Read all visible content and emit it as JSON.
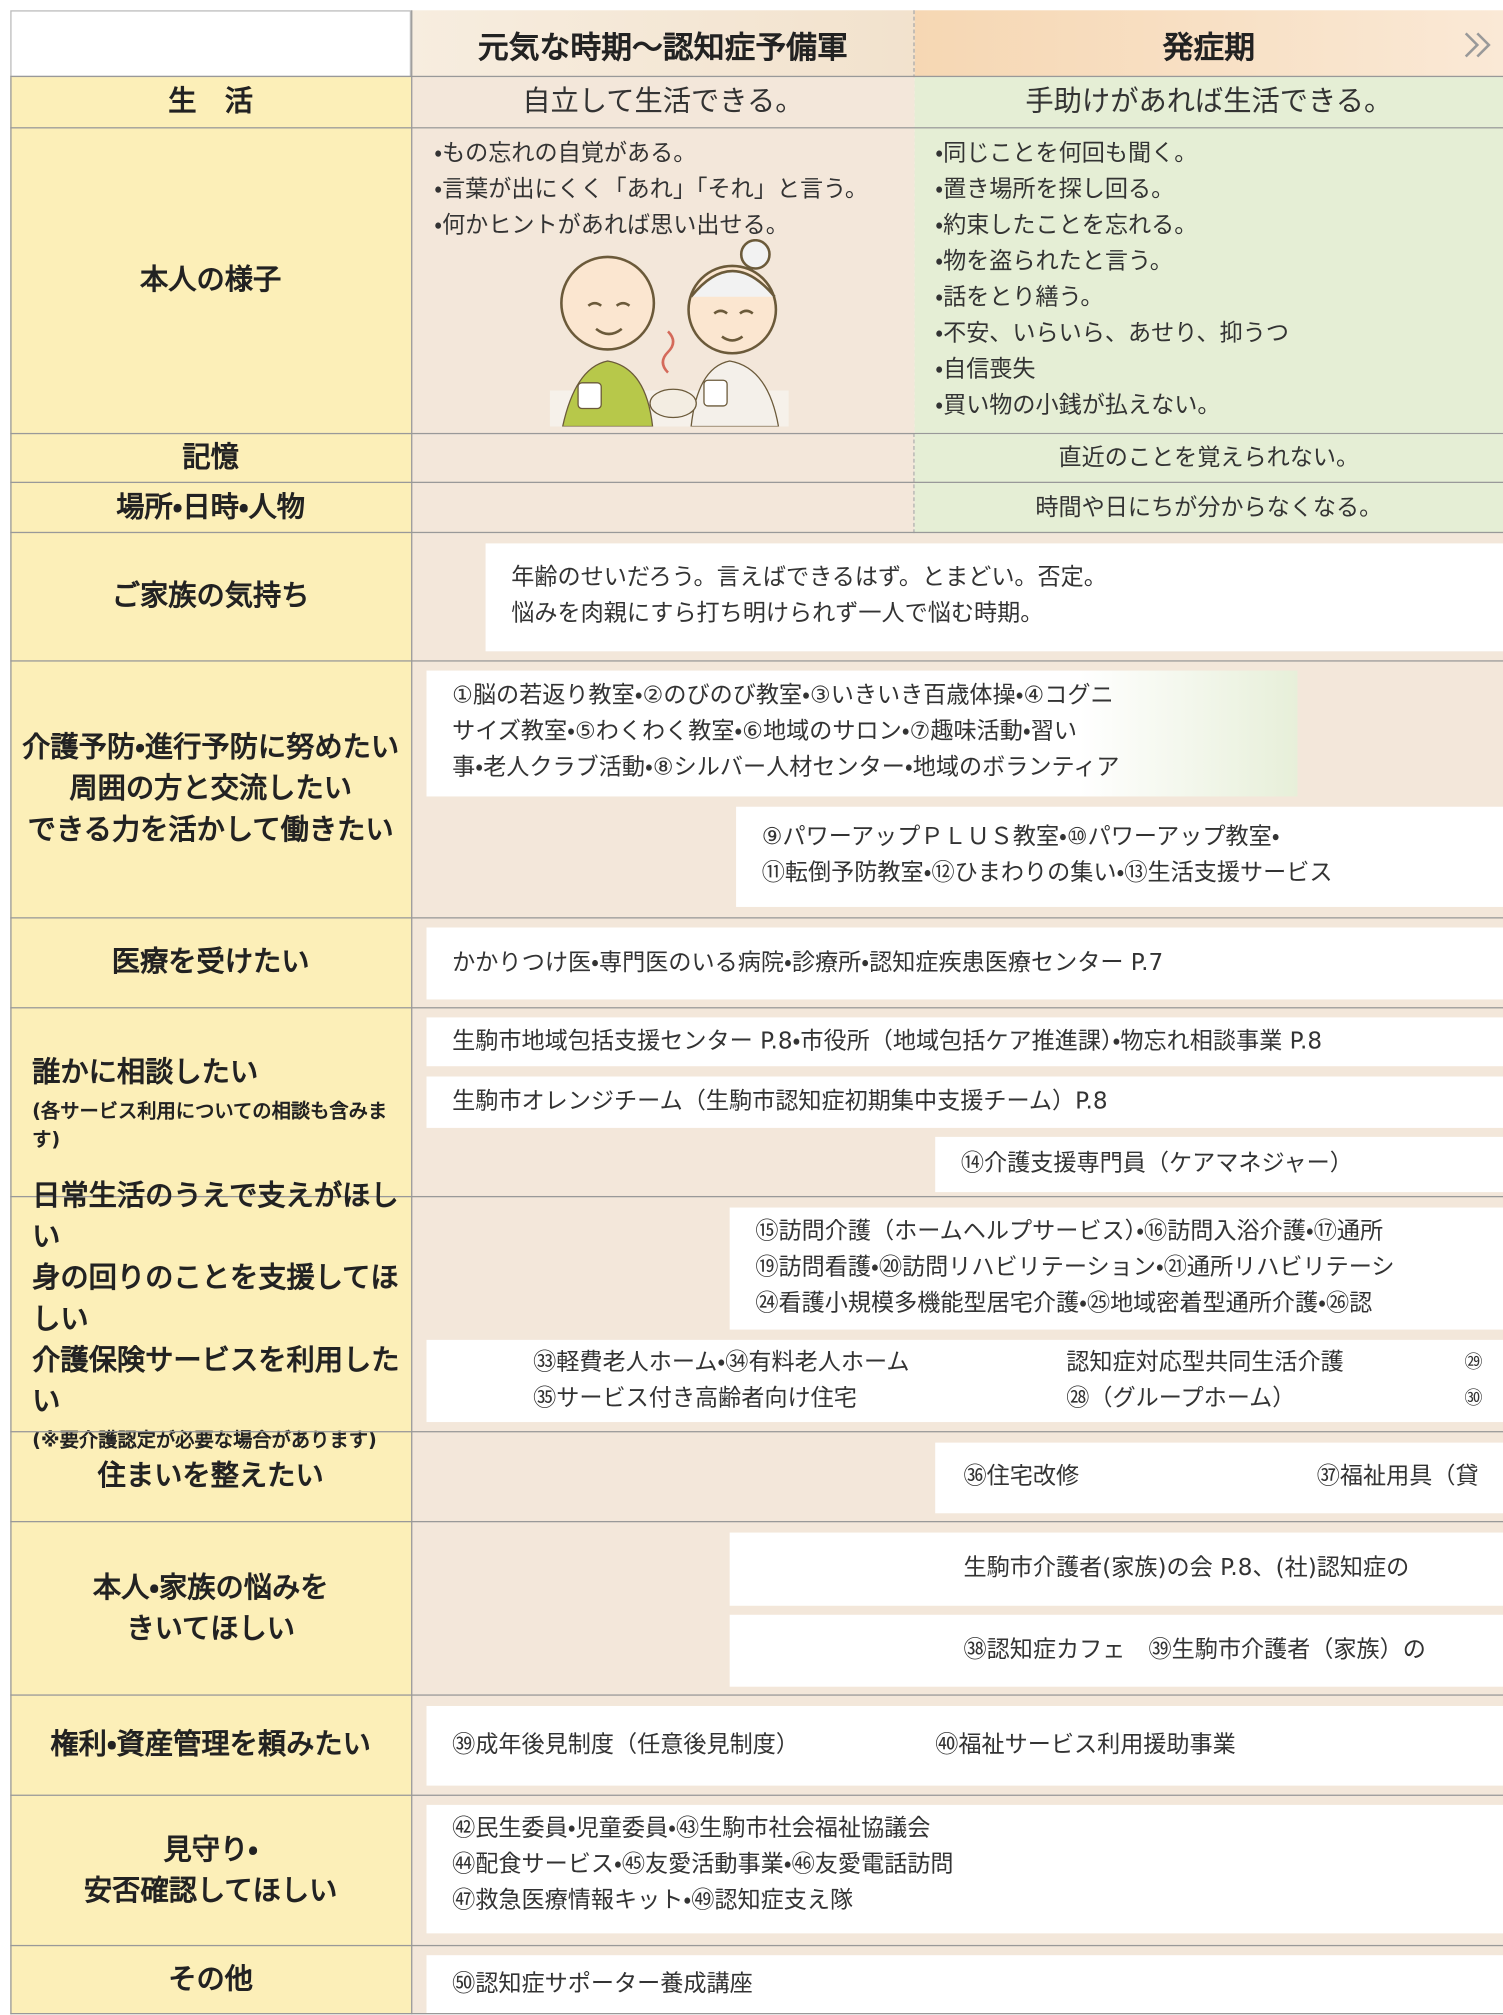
{
  "header": {
    "col1": "元気な時期〜認知症予備軍",
    "col2": "発症期"
  },
  "rows": [
    {
      "label": [
        "生　活"
      ],
      "boxes": [
        {
          "groups": [
            [
              "自立して生活できる。"
            ]
          ]
        },
        {
          "groups": [
            [
              "手助けがあれば生活できる。"
            ]
          ]
        }
      ]
    },
    {
      "label": [
        "本人の様子"
      ],
      "boxes": [
        {
          "groups": [
            [
              "・もの忘れの自覚がある。",
              "・言葉が出にくく「あれ」「それ」と言う。",
              "・何かヒントがあれば思い出せる。"
            ]
          ]
        },
        {
          "groups": [
            [
              "・同じことを何回も聞く。",
              "・置き場所を探し回る。",
              "・約束したことを忘れる。",
              "・物を盗られたと言う。",
              "・話をとり繕う。",
              "・不安、いらいら、あせり、抑うつ",
              "・自信喪失",
              "・買い物の小銭が払えない。"
            ]
          ]
        }
      ]
    },
    {
      "label": [
        "記憶"
      ],
      "boxes": [
        {
          "groups": [
            [
              "直近のことを覚えられない。"
            ]
          ]
        }
      ]
    },
    {
      "label": [
        "場所・日時・人物"
      ],
      "boxes": [
        {
          "groups": [
            [
              "時間や日にちが分からなくなる。"
            ]
          ]
        }
      ]
    },
    {
      "label": [
        "ご家族の気持ち"
      ],
      "boxes": [
        {
          "groups": [
            [
              "年齢のせいだろう。言えばできるはず。とまどい。否定。",
              "悩みを肉親にすら打ち明けられず一人で悩む時期。"
            ]
          ]
        }
      ]
    },
    {
      "label": [
        "介護予防・進行予防に努めたい",
        "周囲の方と交流したい",
        "できる力を活かして働きたい"
      ],
      "boxes": [
        {
          "groups": [
            [
              "①脳の若返り教室・②のびのび教室・③いきいき百歳体操・④コグニ",
              "サイズ教室・⑤わくわく教室・⑥地域のサロン・⑦趣味活動・習い",
              "事・老人クラブ活動・⑧シルバー人材センター・地域のボランティア"
            ]
          ]
        },
        {
          "groups": [
            [
              "⑨パワーアップＰＬＵＳ教室・⑩パワーアップ教室・",
              "⑪転倒予防教室・⑫ひまわりの集い・⑬生活支援サービス"
            ]
          ]
        }
      ]
    },
    {
      "label": [
        "医療を受けたい"
      ],
      "boxes": [
        {
          "groups": [
            [
              "かかりつけ医・専門医のいる病院・診療所・認知症疾患医療センター P.7"
            ]
          ]
        }
      ]
    },
    {
      "label": [
        "誰かに相談したい"
      ],
      "note": "(各サービス利用についての相談も含みます)",
      "boxes": [
        {
          "groups": [
            [
              "生駒市地域包括支援センター P.8・市役所（地域包括ケア推進課）・物忘れ相談事業 P.8"
            ]
          ]
        },
        {
          "groups": [
            [
              "生駒市オレンジチーム（生駒市認知症初期集中支援チーム）P.8"
            ]
          ]
        },
        {
          "groups": [
            [
              "⑭介護支援専門員（ケアマネジャー）"
            ]
          ]
        }
      ]
    },
    {
      "label": [
        "日常生活のうえで支えがほしい",
        "身の回りのことを支援してほしい",
        "介護保険サービスを利用したい"
      ],
      "note": "(※要介護認定が必要な場合があります)",
      "boxes": [
        {
          "groups": [
            [
              "⑮訪問介護（ホームヘルプサービス）・⑯訪問入浴介護・⑰通所",
              "⑲訪問看護・⑳訪問リハビリテーション・㉑通所リハビリテーシ",
              "㉔看護小規模多機能型居宅介護・㉕地域密着型通所介護・㉖認"
            ]
          ]
        },
        {
          "groups": [
            [
              "㉝軽費老人ホーム・㉞有料老人ホーム",
              "㉟サービス付き高齢者向け住宅"
            ],
            [
              "認知症対応型共同生活介護",
              "㉘（グループホーム）"
            ],
            [
              "㉙",
              "㉚"
            ]
          ]
        }
      ]
    },
    {
      "label": [
        "住まいを整えたい"
      ],
      "boxes": [
        {
          "groups": [
            [
              "㊱住宅改修"
            ],
            [
              "㊲福祉用具（貸"
            ]
          ]
        }
      ]
    },
    {
      "label": [
        "本人・家族の悩みを",
        "きいてほしい"
      ],
      "boxes": [
        {
          "groups": [
            [
              "生駒市介護者(家族)の会 P.8、(社)認知症の"
            ]
          ]
        },
        {
          "groups": [
            [
              "㊳認知症カフェ　㊴生駒市介護者（家族）の"
            ]
          ]
        }
      ]
    },
    {
      "label": [
        "権利・資産管理を頼みたい"
      ],
      "boxes": [
        {
          "groups": [
            [
              "㊴成年後見制度（任意後見制度）"
            ],
            [
              "㊵福祉サービス利用援助事業"
            ]
          ]
        }
      ]
    },
    {
      "label": [
        "見守り・",
        "安否確認してほしい"
      ],
      "boxes": [
        {
          "groups": [
            [
              "㊷民生委員・児童委員・㊸生駒市社会福祉協議会",
              "㊹配食サービス・㊺友愛活動事業・㊻友愛電話訪問",
              "㊼救急医療情報キット・㊾認知症支え隊"
            ]
          ]
        }
      ]
    },
    {
      "label": [
        "その他"
      ],
      "boxes": [
        {
          "groups": [
            [
              "㊿認知症サポーター養成講座"
            ]
          ]
        }
      ]
    }
  ]
}
